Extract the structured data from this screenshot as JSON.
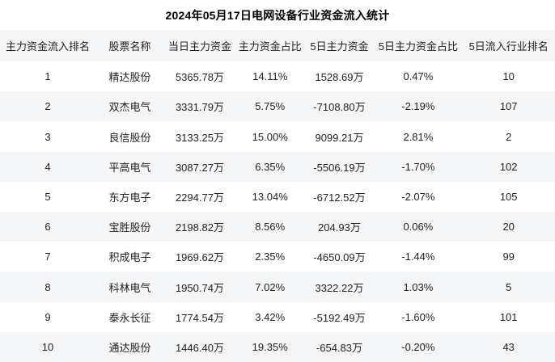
{
  "title": "2024年05月17日电网设备行业资金流入统计",
  "colors": {
    "header_bg": "#f5f6f8",
    "row_alt_bg": "#f5f6f8",
    "title_text": "#000000",
    "body_text": "#1f1f1f",
    "page_bg": "#ffffff"
  },
  "chart_data": {
    "type": "table",
    "title": "2024年05月17日电网设备行业资金流入统计",
    "columns": [
      "主力资金流入排名",
      "股票名称",
      "当日主力资金",
      "主力资金占比",
      "5日主力资金",
      "5日主力资金占比",
      "5日流入行业排名"
    ],
    "rows": [
      [
        "1",
        "精达股份",
        "5365.78万",
        "14.11%",
        "1528.69万",
        "0.47%",
        "10"
      ],
      [
        "2",
        "双杰电气",
        "3331.79万",
        "5.75%",
        "-7108.80万",
        "-2.19%",
        "107"
      ],
      [
        "3",
        "良信股份",
        "3133.25万",
        "15.00%",
        "9099.21万",
        "2.81%",
        "2"
      ],
      [
        "4",
        "平高电气",
        "3087.27万",
        "6.35%",
        "-5506.19万",
        "-1.70%",
        "102"
      ],
      [
        "5",
        "东方电子",
        "2294.77万",
        "13.04%",
        "-6712.52万",
        "-2.07%",
        "105"
      ],
      [
        "6",
        "宝胜股份",
        "2198.82万",
        "8.56%",
        "204.93万",
        "0.06%",
        "20"
      ],
      [
        "7",
        "积成电子",
        "1969.62万",
        "2.35%",
        "-4650.09万",
        "-1.44%",
        "99"
      ],
      [
        "8",
        "科林电气",
        "1950.74万",
        "7.02%",
        "3322.22万",
        "1.03%",
        "5"
      ],
      [
        "9",
        "泰永长征",
        "1774.54万",
        "3.42%",
        "-5192.49万",
        "-1.60%",
        "101"
      ],
      [
        "10",
        "通达股份",
        "1446.40万",
        "19.35%",
        "-654.83万",
        "-0.20%",
        "43"
      ]
    ]
  }
}
